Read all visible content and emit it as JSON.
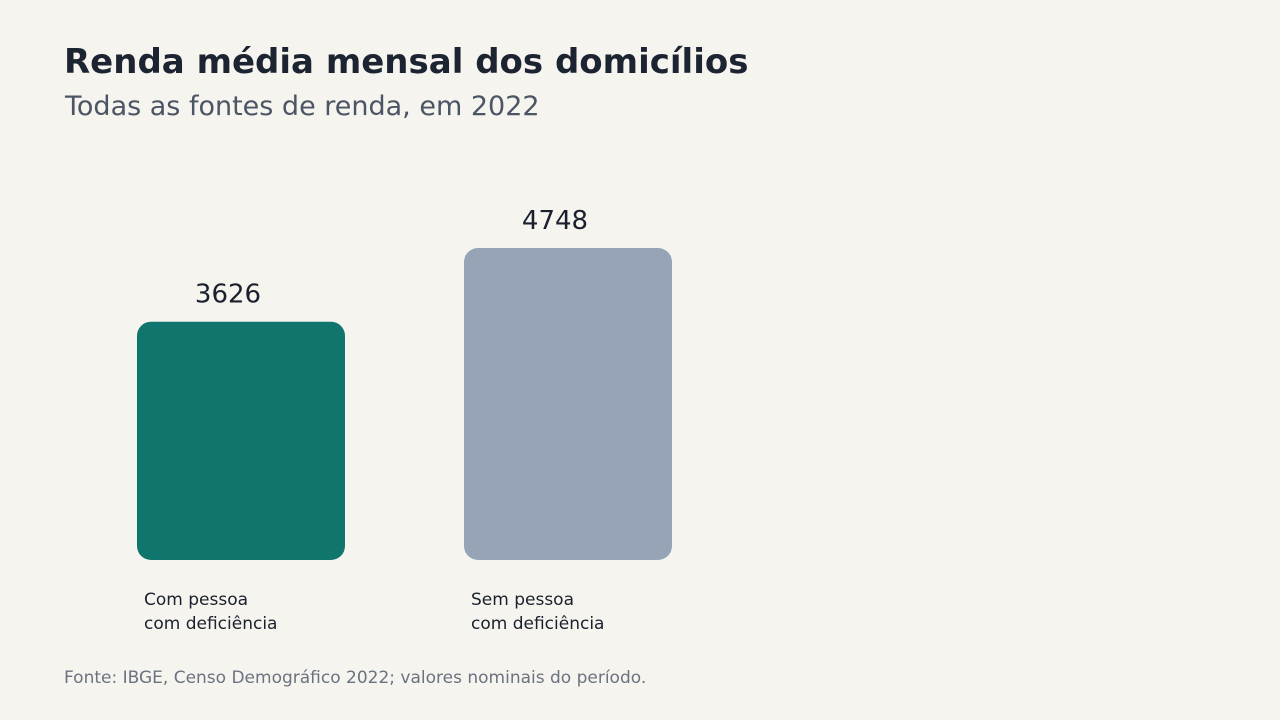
{
  "header": {
    "title": "Renda média mensal dos domicílios",
    "subtitle": "Todas as fontes de renda, em 2022"
  },
  "chart_data": {
    "type": "bar",
    "title": "Renda média mensal dos domicílios",
    "subtitle": "Todas as fontes de renda, em 2022",
    "categories": [
      [
        "Com pessoa",
        "com deficiência"
      ],
      [
        "Sem pessoa",
        "com deficiência"
      ]
    ],
    "values": [
      3626,
      4748
    ],
    "colors": [
      "#10766d",
      "#97a4b8"
    ],
    "xlabel": "",
    "ylabel": "",
    "grid": false
  },
  "footer": {
    "source": "Fonte: IBGE, Censo Demográfico 2022; valores nominais do período."
  }
}
